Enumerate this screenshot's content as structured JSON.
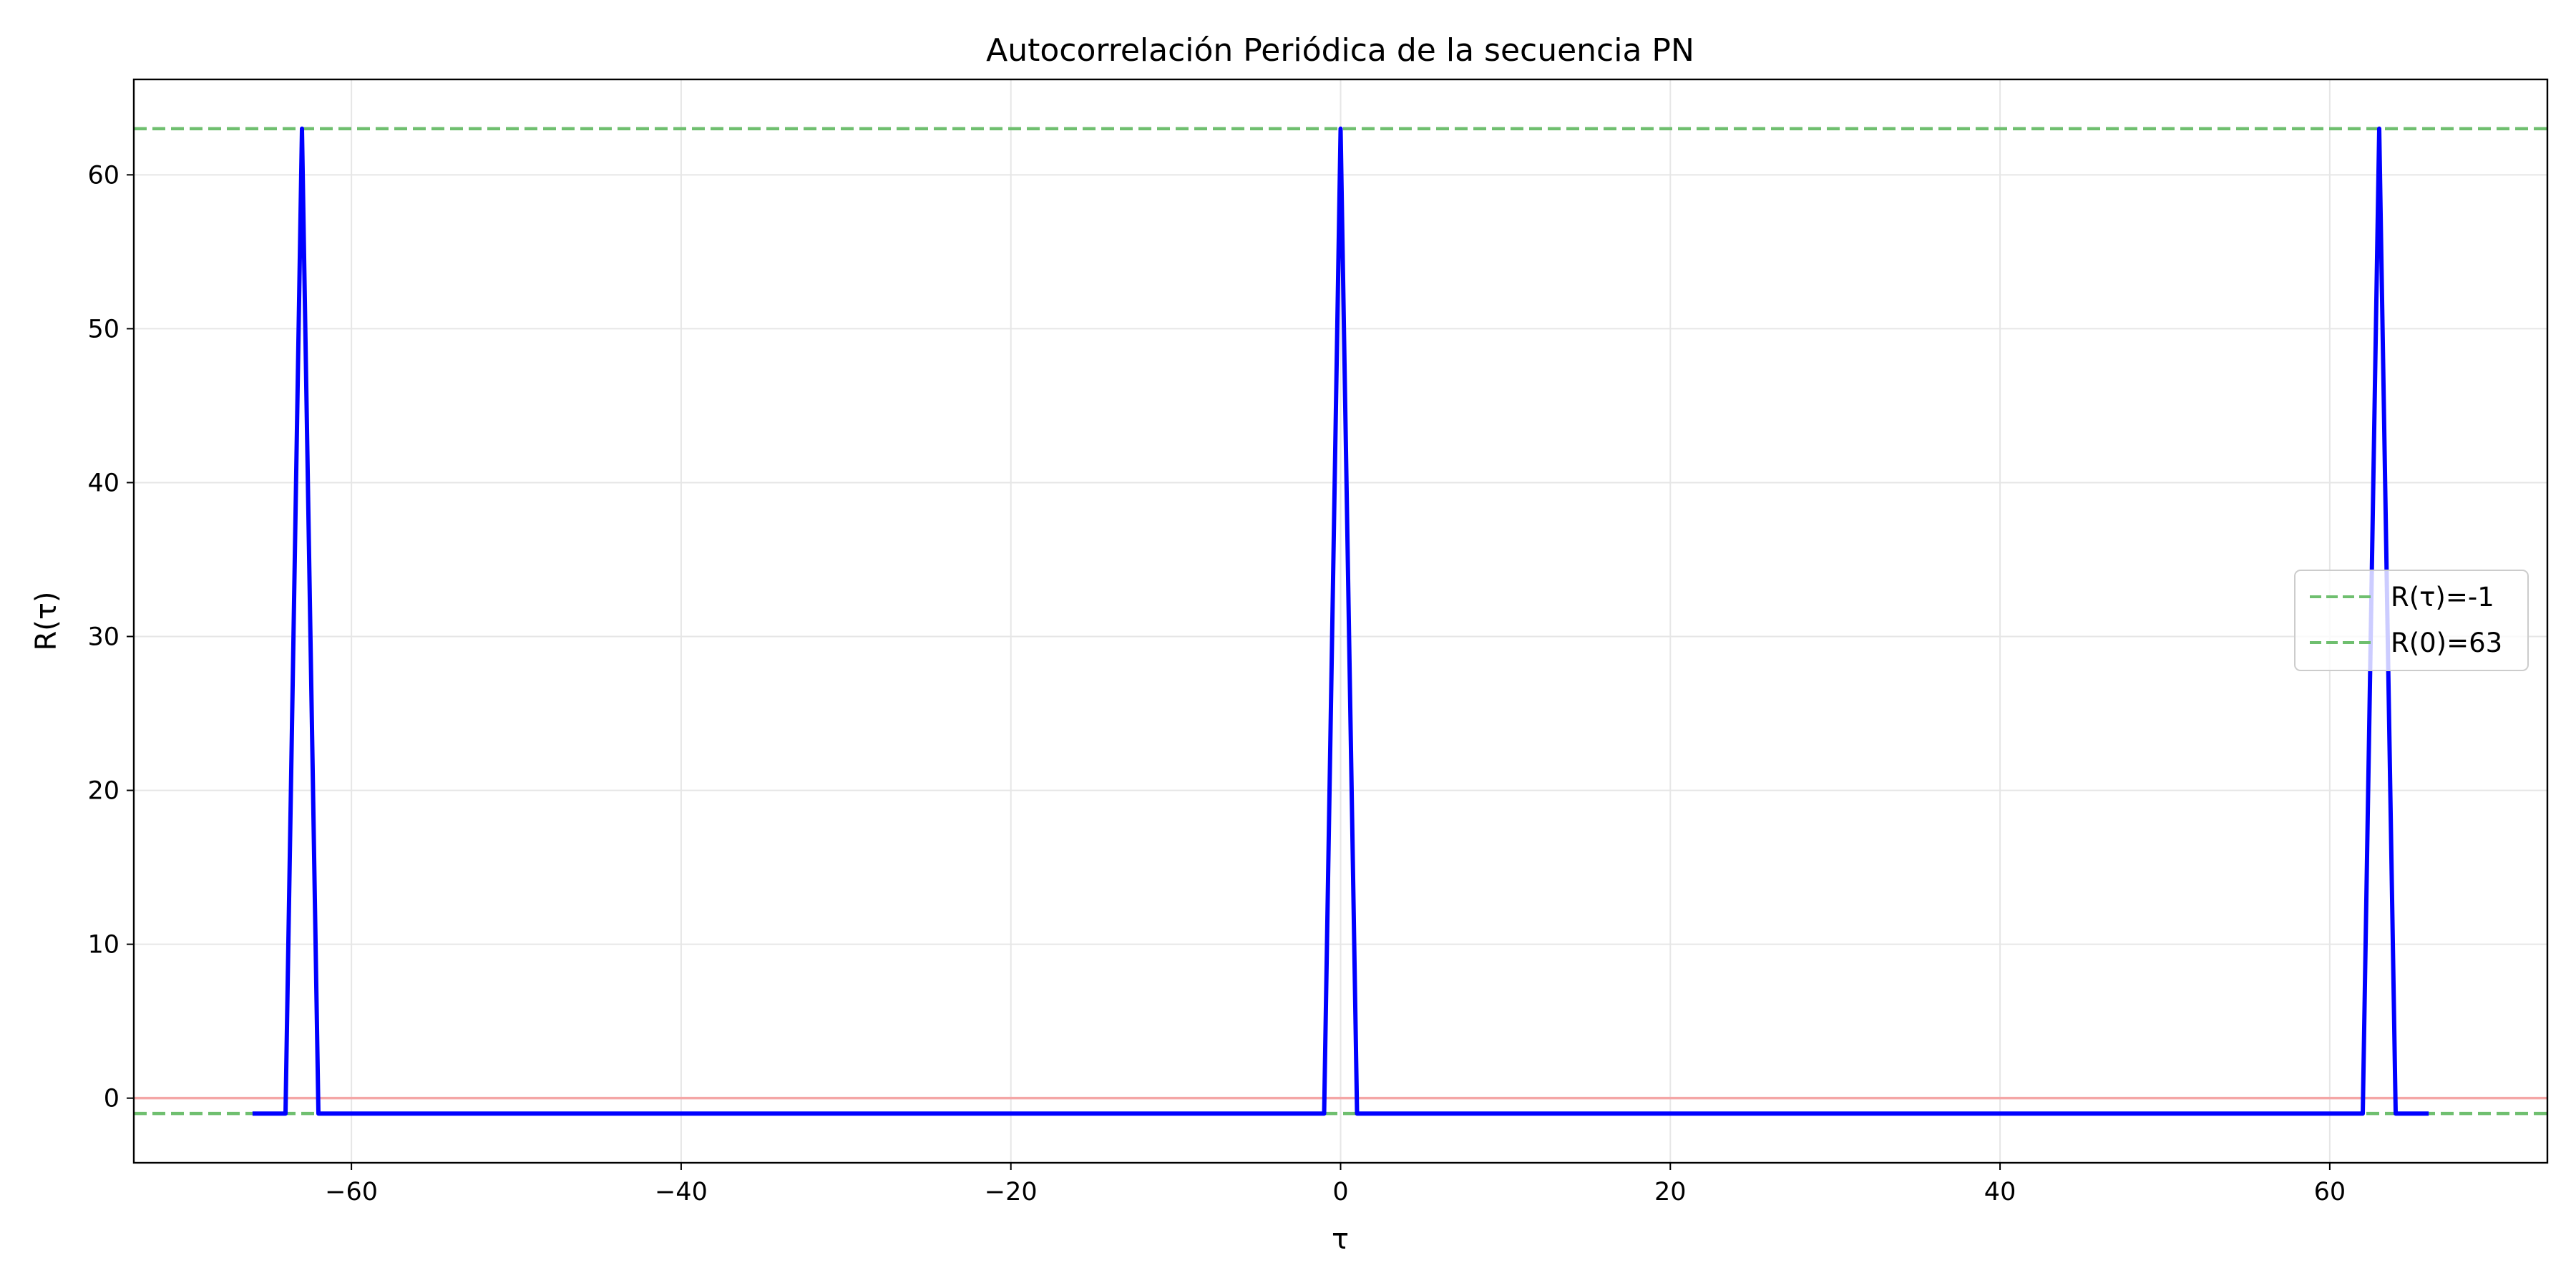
{
  "chart_data": {
    "type": "line",
    "title": "Autocorrelación Periódica de la secuencia PN",
    "xlabel": "τ",
    "ylabel": "R(τ)",
    "xlim": [
      -73.2,
      73.2
    ],
    "ylim": [
      -4.2,
      66.2
    ],
    "x_ticks": [
      -60,
      -40,
      -20,
      0,
      20,
      40,
      60
    ],
    "y_ticks": [
      0,
      10,
      20,
      30,
      40,
      50,
      60
    ],
    "x_tick_labels": [
      "−60",
      "−40",
      "−20",
      "0",
      "20",
      "40",
      "60"
    ],
    "y_tick_labels": [
      "0",
      "10",
      "20",
      "30",
      "40",
      "50",
      "60"
    ],
    "grid": true,
    "legend_position": "center-right",
    "series": [
      {
        "x": [
          -66,
          -64,
          -63,
          -62,
          -1,
          0,
          1,
          62,
          63,
          64,
          66
        ],
        "y": [
          -1,
          -1,
          63,
          -1,
          -1,
          63,
          -1,
          -1,
          63,
          -1,
          -1
        ],
        "color": "#0000ff"
      }
    ],
    "reference_lines": [
      {
        "orientation": "horizontal",
        "y": 0,
        "color": "#f4a6a6",
        "style": "solid"
      },
      {
        "orientation": "horizontal",
        "y": -1,
        "color": "#6fbf6f",
        "style": "dashed",
        "label": "R(τ)=-1"
      },
      {
        "orientation": "horizontal",
        "y": 63,
        "color": "#6fbf6f",
        "style": "dashed",
        "label": "R(0)=63"
      }
    ],
    "legend": [
      "R(τ)=-1",
      "R(0)=63"
    ]
  }
}
